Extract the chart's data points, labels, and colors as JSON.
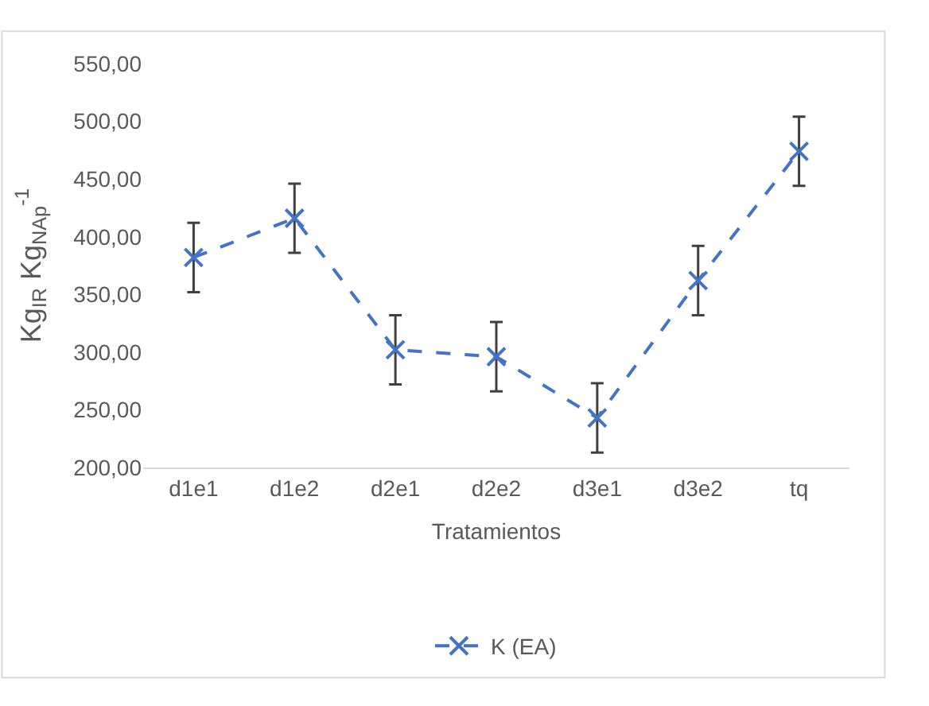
{
  "chart_data": {
    "type": "line",
    "xlabel": "Tratamientos",
    "ylabel": "Kg$_{IR}$ Kg$_{NAp}$$^{-1}$",
    "categories": [
      "d1e1",
      "d1e2",
      "d2e1",
      "d2e2",
      "d3e1",
      "d3e2",
      "tq"
    ],
    "series": [
      {
        "name": "K (EA)",
        "color": "#4472c4",
        "values": [
          382,
          416,
          302,
          296,
          243,
          362,
          474
        ],
        "errors": [
          30,
          30,
          30,
          30,
          30,
          30,
          30
        ]
      }
    ],
    "ylim": [
      200,
      550
    ],
    "yticks": [
      {
        "value": 200,
        "label": "200,00"
      },
      {
        "value": 250,
        "label": "250,00"
      },
      {
        "value": 300,
        "label": "300,00"
      },
      {
        "value": 350,
        "label": "350,00"
      },
      {
        "value": 400,
        "label": "400,00"
      },
      {
        "value": 450,
        "label": "450,00"
      },
      {
        "value": 500,
        "label": "500,00"
      },
      {
        "value": 550,
        "label": "550,00"
      }
    ],
    "legend": "bottom",
    "marker": "cross",
    "line_style": "dashed"
  }
}
